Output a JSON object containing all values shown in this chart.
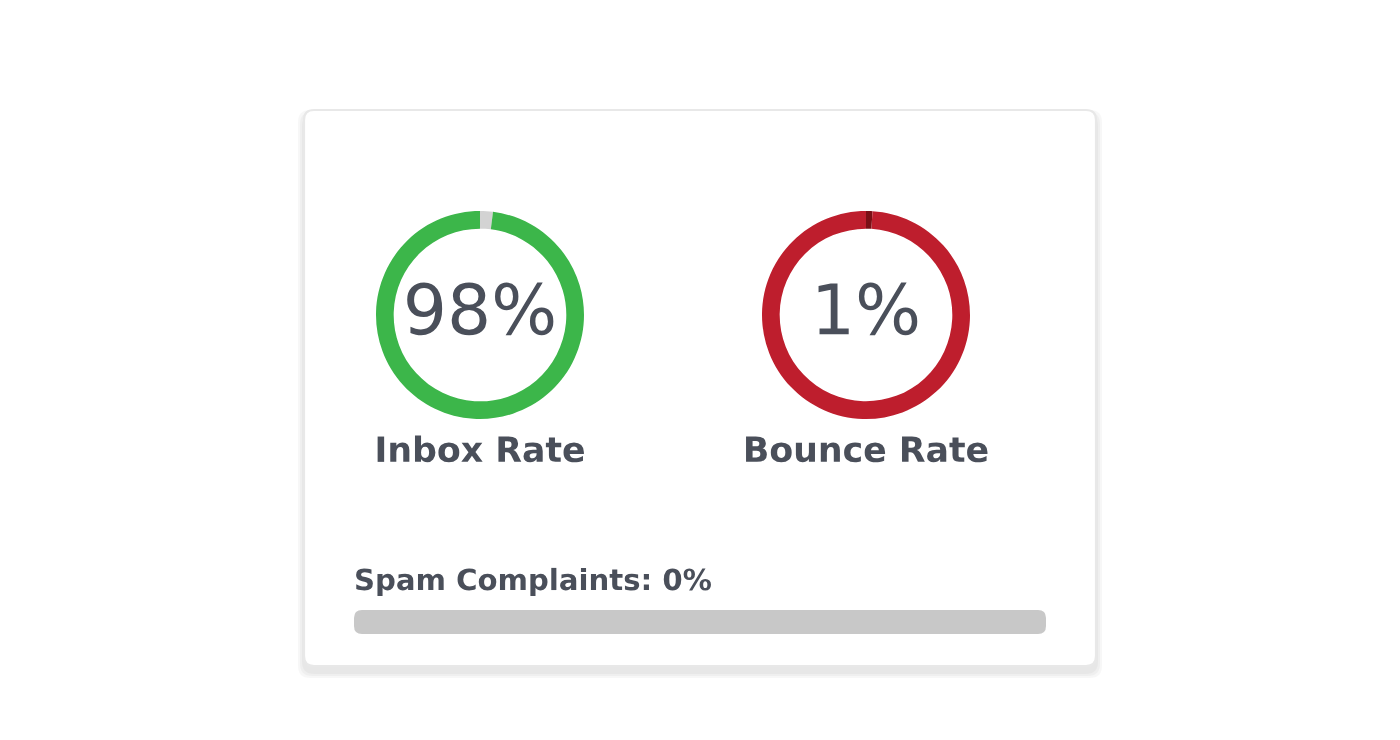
{
  "chart_data": [
    {
      "type": "donut",
      "title": "Inbox Rate",
      "categories": [
        null,
        null
      ],
      "values": [
        2,
        98
      ],
      "colors": [
        "#d3d3d3",
        "#3cb64a"
      ],
      "value_labels": [
        null,
        "98%"
      ]
    },
    {
      "type": "donut",
      "title": "Bounce Rate",
      "categories": [
        null,
        null
      ],
      "values": [
        1,
        99
      ],
      "colors": [
        "#7a1016",
        "#be1e2d"
      ],
      "value_labels": [
        "1%",
        null
      ]
    },
    {
      "type": "other",
      "annotations": [
        "Spam Complaints: 0%"
      ]
    }
  ]
}
